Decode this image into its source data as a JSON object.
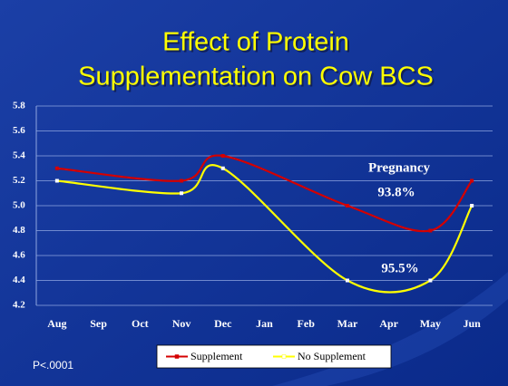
{
  "chart_data": {
    "type": "line",
    "title": [
      "Effect of Protein",
      "Supplementation on Cow BCS"
    ],
    "categories": [
      "Aug",
      "Sep",
      "Oct",
      "Nov",
      "Dec",
      "Jan",
      "Feb",
      "Mar",
      "Apr",
      "May",
      "Jun"
    ],
    "series": [
      {
        "name": "Supplement",
        "color": "#d40000",
        "marker_color": "#d40000",
        "x": [
          "Aug",
          "Nov",
          "Dec",
          "Mar",
          "May",
          "Jun"
        ],
        "values": [
          5.3,
          5.2,
          5.4,
          5.0,
          4.8,
          5.2
        ]
      },
      {
        "name": "No Supplement",
        "color": "#ffff00",
        "marker_color": "#ffffff",
        "x": [
          "Aug",
          "Nov",
          "Dec",
          "Mar",
          "May",
          "Jun"
        ],
        "values": [
          5.2,
          5.1,
          5.3,
          4.4,
          4.4,
          5.0
        ]
      }
    ],
    "ylim": [
      4.2,
      5.8
    ],
    "yticks": [
      5.8,
      5.6,
      5.4,
      {
        "value": 5.2,
        "label": "5.2"
      },
      {
        "value": 5,
        "label": "5.0"
      },
      4.8,
      4.6,
      4.4,
      4.2
    ],
    "grid": true,
    "smooth": true,
    "annotations": [
      "Pregnancy",
      "93.8%",
      "95.5%"
    ],
    "footnote": "P<.0001"
  }
}
